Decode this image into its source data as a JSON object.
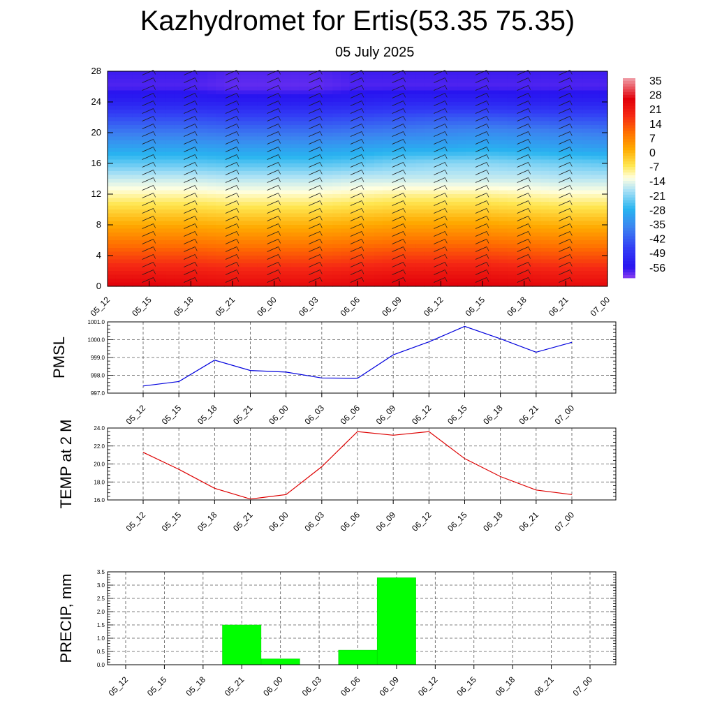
{
  "title": "Kazhydromet for Ertis(53.35 75.35)",
  "subtitle": "05 July 2025",
  "time_labels": [
    "05_12",
    "05_15",
    "05_18",
    "05_21",
    "06_00",
    "06_03",
    "06_06",
    "06_09",
    "06_12",
    "06_15",
    "06_18",
    "06_21",
    "07_00"
  ],
  "chart_data": [
    {
      "type": "heatmap",
      "title": "",
      "ylim": [
        0,
        28
      ],
      "yticks": [
        "0",
        "4",
        "8",
        "12",
        "16",
        "20",
        "24",
        "28"
      ],
      "x": [
        "05_12",
        "05_15",
        "05_18",
        "05_21",
        "06_00",
        "06_03",
        "06_06",
        "06_09",
        "06_12",
        "06_15",
        "06_18",
        "06_21",
        "07_00"
      ],
      "y": [
        0,
        2,
        4,
        6,
        8,
        10,
        12,
        14,
        16,
        18,
        20,
        22,
        24,
        26,
        28
      ],
      "values": [
        [
          26,
          26,
          25,
          24,
          24,
          24,
          25,
          26,
          26,
          26,
          25,
          24,
          24
        ],
        [
          20,
          20,
          20,
          19,
          19,
          19,
          20,
          21,
          21,
          21,
          20,
          19,
          19
        ],
        [
          14,
          14,
          14,
          13,
          13,
          13,
          14,
          15,
          15,
          15,
          14,
          13,
          13
        ],
        [
          8,
          8,
          8,
          7,
          7,
          7,
          8,
          9,
          9,
          9,
          8,
          7,
          7
        ],
        [
          2,
          2,
          2,
          1,
          1,
          1,
          2,
          3,
          3,
          3,
          2,
          1,
          1
        ],
        [
          -4,
          -4,
          -4,
          -5,
          -5,
          -5,
          -4,
          -3,
          -3,
          -3,
          -4,
          -5,
          -5
        ],
        [
          -10,
          -10,
          -10,
          -11,
          -11,
          -11,
          -10,
          -9,
          -9,
          -9,
          -10,
          -11,
          -11
        ],
        [
          -16,
          -16,
          -16,
          -17,
          -17,
          -17,
          -16,
          -16,
          -16,
          -16,
          -16,
          -17,
          -17
        ],
        [
          -23,
          -23,
          -23,
          -24,
          -24,
          -24,
          -23,
          -21,
          -20,
          -20,
          -21,
          -22,
          -23
        ],
        [
          -30,
          -30,
          -30,
          -31,
          -31,
          -31,
          -30,
          -29,
          -29,
          -28,
          -29,
          -30,
          -31
        ],
        [
          -37,
          -37,
          -37,
          -38,
          -38,
          -38,
          -37,
          -36,
          -35,
          -34,
          -35,
          -36,
          -37
        ],
        [
          -44,
          -44,
          -44,
          -45,
          -45,
          -45,
          -44,
          -43,
          -42,
          -42,
          -43,
          -44,
          -44
        ],
        [
          -52,
          -52,
          -52,
          -53,
          -53,
          -53,
          -52,
          -51,
          -51,
          -51,
          -52,
          -52,
          -52
        ],
        [
          -57,
          -57,
          -57,
          -58,
          -58,
          -58,
          -57,
          -57,
          -57,
          -57,
          -57,
          -57,
          -57
        ],
        [
          -56,
          -56,
          -56,
          -57,
          -57,
          -57,
          -56,
          -56,
          -56,
          -56,
          -56,
          -56,
          -56
        ]
      ],
      "colorbar_labels": [
        "35",
        "28",
        "21",
        "14",
        "7",
        "0",
        "-7",
        "-14",
        "-21",
        "-28",
        "-35",
        "-42",
        "-49",
        "-56"
      ],
      "colors": {
        "hot": "#e8001a",
        "orange": "#ff8a00",
        "yellow": "#fff6a0",
        "cyan": "#2ab4f0",
        "blue": "#2020f0",
        "violet": "#8a3cf0"
      }
    },
    {
      "type": "line",
      "ylabel": "PMSL",
      "ylim": [
        997.0,
        1001.0
      ],
      "yticks": [
        "997.0",
        "998.0",
        "999.0",
        "1000.0",
        "1001.0"
      ],
      "x": [
        "05_12",
        "05_15",
        "05_18",
        "05_21",
        "06_00",
        "06_03",
        "06_06",
        "06_09",
        "06_12",
        "06_15",
        "06_18",
        "06_21",
        "07_00"
      ],
      "values": [
        997.4,
        997.65,
        998.85,
        998.27,
        998.18,
        997.85,
        997.83,
        999.15,
        999.88,
        1000.75,
        1000.05,
        999.3,
        999.85
      ],
      "color": "#0000dd",
      "grid": true
    },
    {
      "type": "line",
      "ylabel": "TEMP at 2 M",
      "ylim": [
        16.0,
        24.0
      ],
      "yticks": [
        "16.0",
        "18.0",
        "20.0",
        "22.0",
        "24.0"
      ],
      "x": [
        "05_12",
        "05_15",
        "05_18",
        "05_21",
        "06_00",
        "06_03",
        "06_06",
        "06_09",
        "06_12",
        "06_15",
        "06_18",
        "06_21",
        "07_00"
      ],
      "values": [
        21.3,
        19.4,
        17.3,
        16.1,
        16.6,
        19.7,
        23.6,
        23.2,
        23.6,
        20.6,
        18.6,
        17.1,
        16.6
      ],
      "color": "#dd0000",
      "grid": true
    },
    {
      "type": "bar",
      "ylabel": "PRECIP, mm",
      "ylim": [
        0.0,
        3.5
      ],
      "yticks": [
        "0.0",
        "0.5",
        "1.0",
        "1.5",
        "2.0",
        "2.5",
        "3.0",
        "3.5"
      ],
      "categories": [
        "05_12",
        "05_15",
        "05_18",
        "05_21",
        "06_00",
        "06_03",
        "06_06",
        "06_09",
        "06_12",
        "06_15",
        "06_18",
        "06_21",
        "07_00"
      ],
      "values": [
        0,
        0,
        0,
        1.5,
        0.22,
        0,
        0.55,
        3.28,
        0,
        0,
        0,
        0,
        0
      ],
      "color": "#00ff00",
      "grid": true
    }
  ]
}
